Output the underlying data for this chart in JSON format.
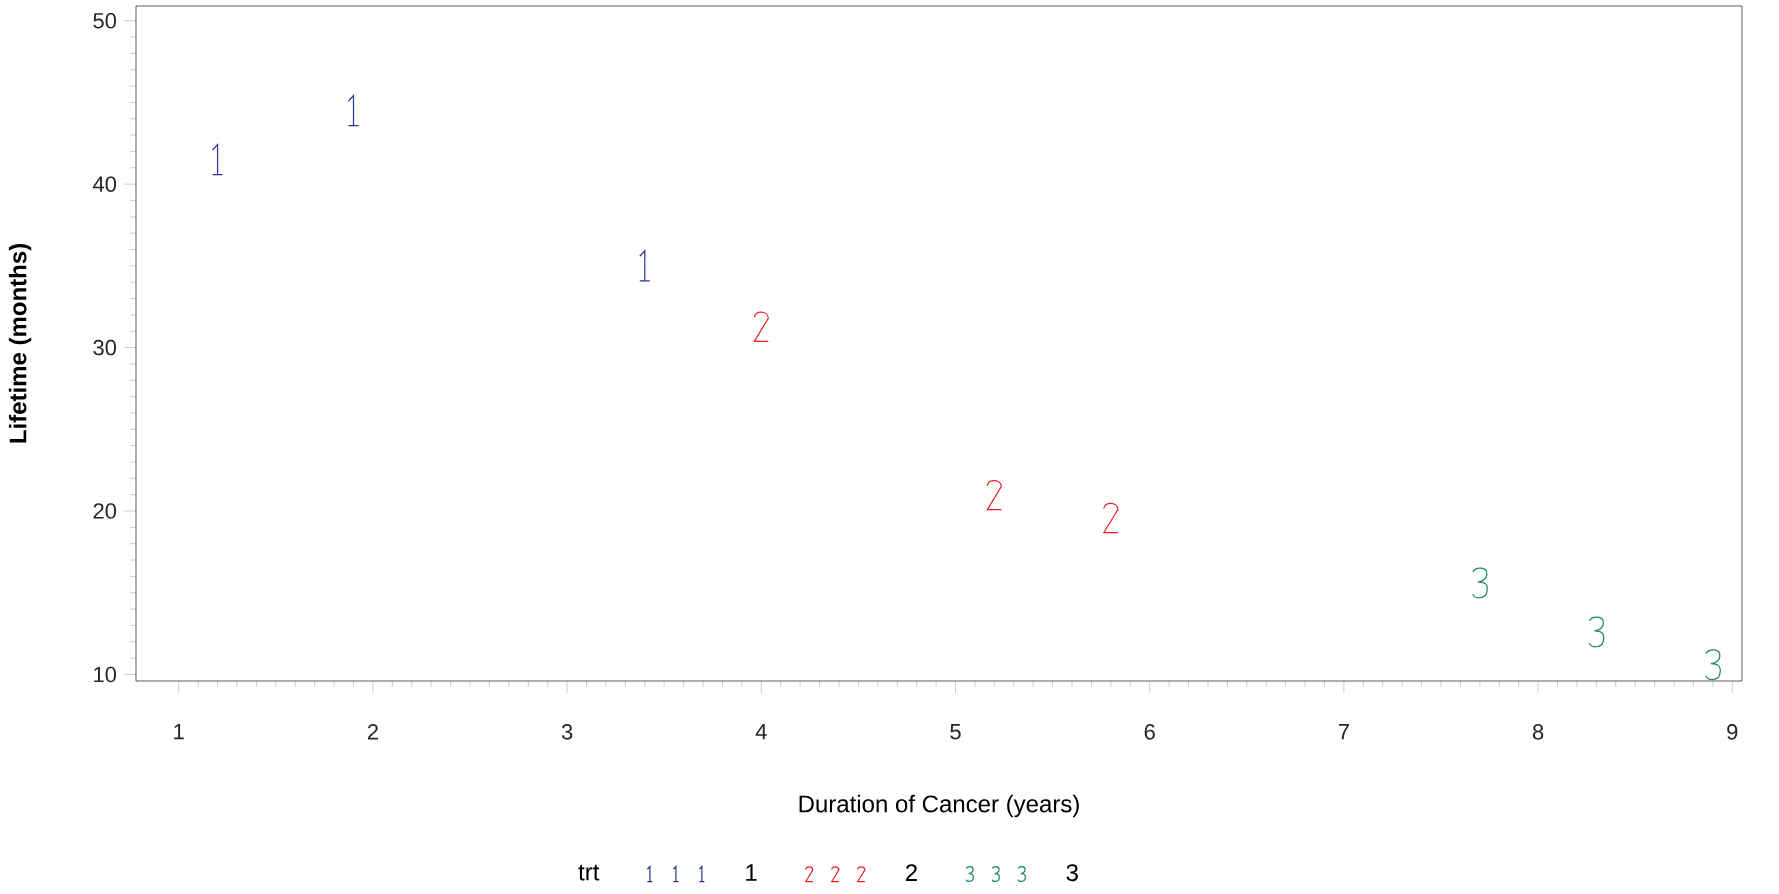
{
  "chart_data": {
    "type": "scatter",
    "xlabel": "Duration of Cancer (years)",
    "ylabel": "Lifetime (months)",
    "legend_title": "trt",
    "legend": "bottom",
    "xlim": [
      0.78,
      9.05
    ],
    "ylim": [
      9.6,
      50.9
    ],
    "xticks": [
      1,
      2,
      3,
      4,
      5,
      6,
      7,
      8,
      9
    ],
    "yticks": [
      10,
      20,
      30,
      40,
      50
    ],
    "series": [
      {
        "name": "1",
        "color": "#2e3192",
        "x": [
          1.2,
          1.9,
          3.4
        ],
        "values": [
          41.5,
          44.5,
          35
        ]
      },
      {
        "name": "2",
        "color": "#ed1c24",
        "x": [
          4.0,
          5.2,
          5.8
        ],
        "values": [
          31.3,
          21,
          19.6
        ]
      },
      {
        "name": "3",
        "color": "#1a8a5a",
        "x": [
          7.7,
          8.3,
          8.9
        ],
        "values": [
          15.6,
          12.6,
          10.6
        ]
      }
    ]
  }
}
